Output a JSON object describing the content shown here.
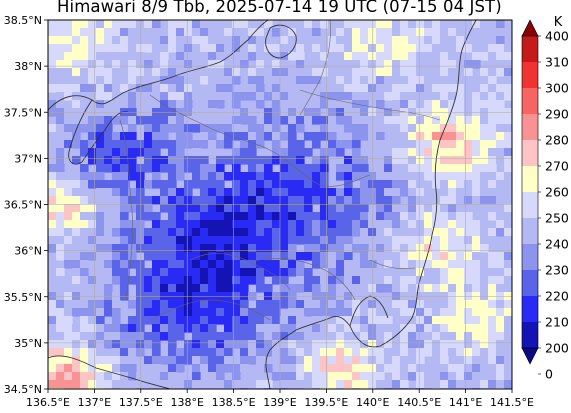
{
  "title": "Himawari 8/9 Tbb, 2025-07-14 19 UTC (07-15 04 JST)",
  "map": {
    "lon_range": [
      136.5,
      141.5
    ],
    "lat_range": [
      34.5,
      38.5
    ],
    "lon_ticks": [
      "136.5°E",
      "137°E",
      "137.5°E",
      "138°E",
      "138.5°E",
      "139°E",
      "139.5°E",
      "140°E",
      "140.5°E",
      "141°E",
      "141.5°E"
    ],
    "lat_ticks": [
      "38.5°N",
      "38°N",
      "37.5°N",
      "37°N",
      "36.5°N",
      "36°N",
      "35.5°N",
      "35°N",
      "34.5°N"
    ],
    "grid": true,
    "colors": {
      "grid": "#aaaaaa",
      "coastline": "#333333",
      "prefecture": "#666666"
    }
  },
  "colorbar": {
    "unit": "K",
    "levels": [
      "400",
      "310",
      "300",
      "290",
      "280",
      "270",
      "260",
      "250",
      "240",
      "230",
      "220",
      "210",
      "200",
      "0"
    ],
    "colors": [
      "#8b0000",
      "#c41a1a",
      "#f03232",
      "#f66464",
      "#f99393",
      "#fcc4c4",
      "#ffffc8",
      "#d6d9fb",
      "#b4b8f3",
      "#8c94ee",
      "#5a64e8",
      "#2a2af5",
      "#1414b4",
      "#0a0a82"
    ],
    "extend": "both"
  }
}
